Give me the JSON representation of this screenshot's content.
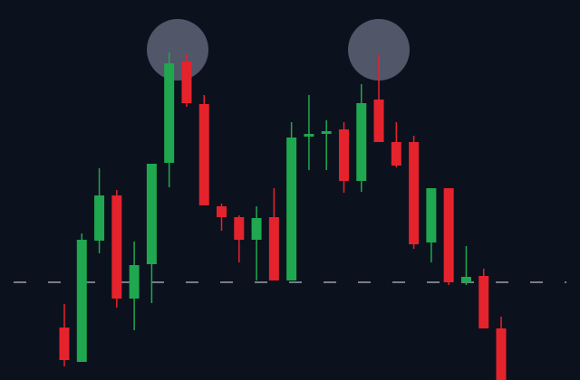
{
  "chart_data": {
    "type": "candlestick",
    "categories": [
      null,
      null,
      null,
      null,
      null,
      null,
      null,
      null,
      null,
      null,
      null,
      null,
      null,
      null,
      null,
      null,
      null,
      null,
      null,
      null,
      null,
      null,
      null,
      null,
      null,
      null
    ],
    "open": [
      58,
      20,
      154,
      204,
      90,
      128,
      240,
      352,
      305,
      192,
      180,
      155,
      180,
      110,
      269,
      272,
      277,
      220,
      310,
      263,
      263,
      152,
      212,
      108,
      115,
      57
    ],
    "high": [
      84,
      162,
      234,
      210,
      153,
      239,
      362,
      360,
      315,
      195,
      182,
      192,
      212,
      285,
      315,
      287,
      285,
      327,
      360,
      285,
      270,
      212,
      212,
      148,
      123,
      70
    ],
    "low": [
      15,
      20,
      140,
      80,
      55,
      85,
      213,
      302,
      193,
      165,
      130,
      110,
      110,
      110,
      232,
      232,
      207,
      208,
      263,
      235,
      145,
      130,
      105,
      105,
      57,
      0
    ],
    "close": [
      22,
      155,
      204,
      90,
      127,
      239,
      350,
      306,
      193,
      180,
      155,
      179,
      110,
      268,
      272,
      275,
      220,
      306,
      263,
      237,
      150,
      212,
      108,
      114,
      57,
      0
    ],
    "up_color": "#1fa84f",
    "down_color": "#e5232c",
    "ylim": [
      0,
      420
    ],
    "support_level": 108
  }
}
